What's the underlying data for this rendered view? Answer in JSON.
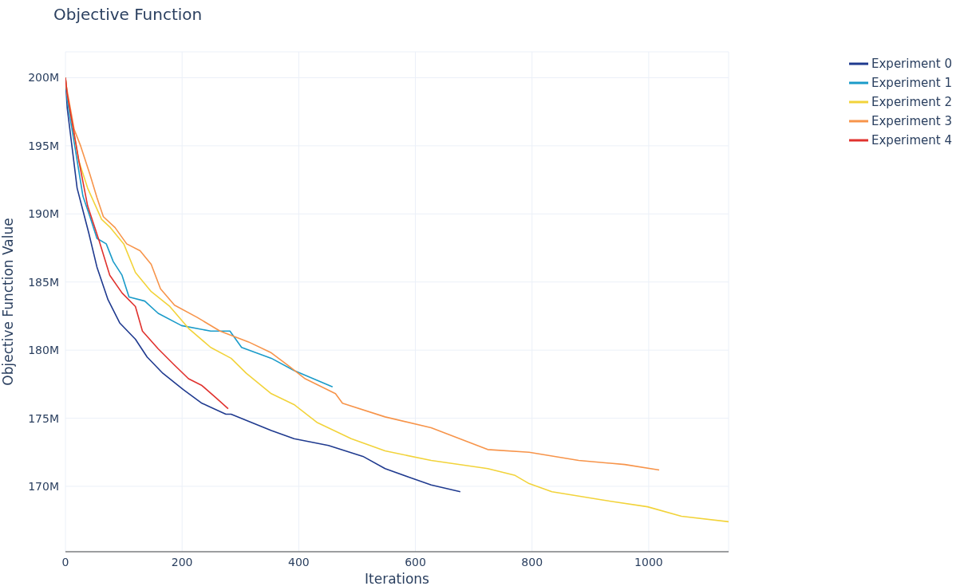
{
  "chart_data": {
    "type": "line",
    "title": "Objective Function",
    "xlabel": "Iterations",
    "ylabel": "Objective Function Value",
    "xlim": [
      0,
      1137
    ],
    "xticks": [
      0,
      200,
      400,
      600,
      800,
      1000
    ],
    "ylim": [
      165200000,
      201900000
    ],
    "yticks": [
      {
        "value": 170000000,
        "label": "170M"
      },
      {
        "value": 175000000,
        "label": "175M"
      },
      {
        "value": 180000000,
        "label": "180M"
      },
      {
        "value": 185000000,
        "label": "185M"
      },
      {
        "value": 190000000,
        "label": "190M"
      },
      {
        "value": 195000000,
        "label": "195M"
      },
      {
        "value": 200000000,
        "label": "200M"
      }
    ],
    "grid": true,
    "legend": "top right",
    "marker": "none",
    "line_style": "solid",
    "series": [
      {
        "name": "Experiment 0",
        "color": "#1f3a8f",
        "x": [
          0,
          3,
          20,
          40,
          54,
          73,
          93,
          120,
          140,
          167,
          202,
          234,
          275,
          284,
          353,
          392,
          451,
          510,
          548,
          587,
          627,
          677
        ],
        "values": [
          200000000,
          197800000,
          191900000,
          188600000,
          186100000,
          183700000,
          182000000,
          180800000,
          179500000,
          178300000,
          177100000,
          176100000,
          175300000,
          175300000,
          174100000,
          173500000,
          173000000,
          172200000,
          171300000,
          170700000,
          170100000,
          169600000
        ]
      },
      {
        "name": "Experiment 1",
        "color": "#1a9bc9",
        "x": [
          0,
          3,
          30,
          42,
          54,
          70,
          82,
          97,
          109,
          136,
          159,
          199,
          249,
          282,
          302,
          353,
          392,
          458
        ],
        "values": [
          200000000,
          198400000,
          191300000,
          189800000,
          188200000,
          187800000,
          186500000,
          185500000,
          183900000,
          183600000,
          182700000,
          181800000,
          181400000,
          181400000,
          180200000,
          179400000,
          178500000,
          177300000
        ]
      },
      {
        "name": "Experiment 2",
        "color": "#f2d33a",
        "x": [
          0,
          3,
          23,
          38,
          62,
          77,
          100,
          120,
          147,
          179,
          211,
          249,
          284,
          310,
          353,
          392,
          431,
          490,
          548,
          627,
          724,
          771,
          795,
          834,
          920,
          998,
          1056,
          1137
        ],
        "values": [
          200000000,
          198800000,
          193900000,
          191900000,
          189600000,
          189000000,
          187800000,
          185700000,
          184300000,
          183200000,
          181600000,
          180200000,
          179400000,
          178300000,
          176800000,
          176000000,
          174700000,
          173500000,
          172600000,
          171900000,
          171300000,
          170800000,
          170200000,
          169600000,
          169000000,
          168500000,
          167800000,
          167400000
        ]
      },
      {
        "name": "Experiment 3",
        "color": "#f7944a",
        "x": [
          0,
          1,
          15,
          26,
          42,
          54,
          65,
          85,
          105,
          128,
          147,
          163,
          187,
          226,
          265,
          314,
          353,
          384,
          411,
          463,
          475,
          548,
          627,
          724,
          795,
          880,
          959,
          1018
        ],
        "values": [
          200000000,
          199500000,
          196200000,
          195000000,
          192900000,
          191200000,
          189800000,
          189000000,
          187800000,
          187300000,
          186300000,
          184500000,
          183300000,
          182400000,
          181400000,
          180600000,
          179800000,
          178800000,
          177900000,
          176800000,
          176100000,
          175100000,
          174300000,
          172700000,
          172500000,
          171900000,
          171600000,
          171200000
        ]
      },
      {
        "name": "Experiment 4",
        "color": "#e0322e",
        "x": [
          0,
          3,
          23,
          38,
          58,
          76,
          97,
          120,
          132,
          159,
          187,
          211,
          234,
          258,
          279
        ],
        "values": [
          200000000,
          198800000,
          193900000,
          190600000,
          188000000,
          185500000,
          184200000,
          183200000,
          181400000,
          180100000,
          178900000,
          177900000,
          177400000,
          176500000,
          175700000
        ]
      }
    ]
  }
}
